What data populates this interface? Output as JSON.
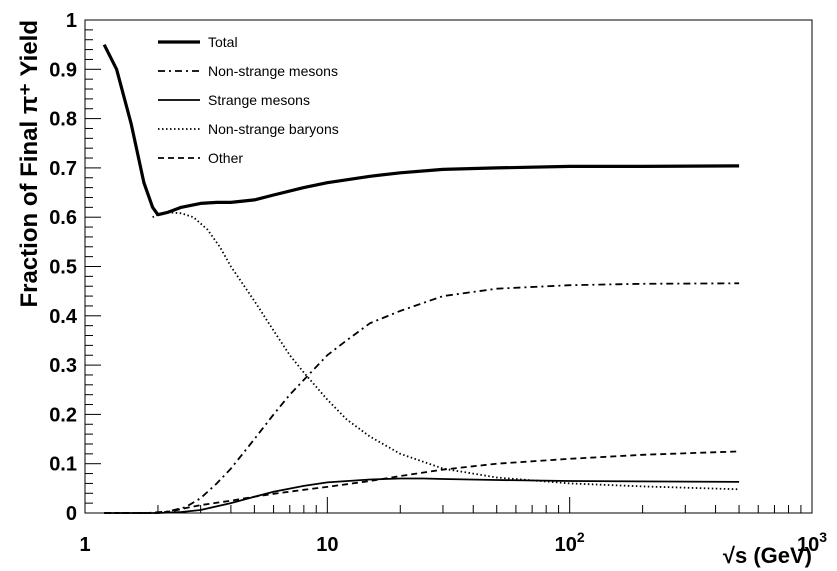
{
  "chart_data": {
    "type": "line",
    "title": "",
    "xlabel": "√s (GeV)",
    "ylabel": "Fraction of Final π⁺ Yield",
    "xscale": "log",
    "xlim": [
      1,
      1000
    ],
    "ylim": [
      0,
      1
    ],
    "xticks": [
      {
        "value": 1,
        "base": "1",
        "exp": ""
      },
      {
        "value": 10,
        "base": "10",
        "exp": ""
      },
      {
        "value": 100,
        "base": "10",
        "exp": "2"
      },
      {
        "value": 1000,
        "base": "10",
        "exp": "3"
      }
    ],
    "yticks": [
      "0",
      "0.1",
      "0.2",
      "0.3",
      "0.4",
      "0.5",
      "0.6",
      "0.7",
      "0.8",
      "0.9",
      "1"
    ],
    "grid": false,
    "legend_position": "top-left",
    "series": [
      {
        "name": "Total",
        "style": "thick-solid",
        "x": [
          1.2,
          1.35,
          1.55,
          1.75,
          1.9,
          2.0,
          2.2,
          2.5,
          3.0,
          3.5,
          4.0,
          5.0,
          6.0,
          8.0,
          10,
          15,
          20,
          30,
          50,
          100,
          200,
          500
        ],
        "y": [
          0.95,
          0.9,
          0.79,
          0.67,
          0.62,
          0.605,
          0.61,
          0.62,
          0.628,
          0.63,
          0.63,
          0.635,
          0.645,
          0.66,
          0.67,
          0.683,
          0.69,
          0.697,
          0.7,
          0.703,
          0.703,
          0.704
        ]
      },
      {
        "name": "Non-strange mesons",
        "style": "dashdot",
        "x": [
          1.2,
          1.8,
          2.2,
          2.6,
          3.0,
          3.5,
          4.0,
          5.0,
          6.0,
          7.0,
          8.0,
          10,
          12,
          15,
          20,
          30,
          50,
          100,
          200,
          500
        ],
        "y": [
          0,
          0,
          0.003,
          0.012,
          0.03,
          0.06,
          0.09,
          0.15,
          0.2,
          0.24,
          0.27,
          0.32,
          0.35,
          0.385,
          0.41,
          0.44,
          0.455,
          0.462,
          0.465,
          0.466
        ]
      },
      {
        "name": "Strange mesons",
        "style": "solid",
        "x": [
          1.2,
          2.0,
          2.5,
          3.0,
          4.0,
          5.0,
          6.0,
          8.0,
          10,
          15,
          20,
          25,
          30,
          50,
          100,
          500
        ],
        "y": [
          0,
          0,
          0.002,
          0.006,
          0.02,
          0.033,
          0.043,
          0.055,
          0.062,
          0.068,
          0.07,
          0.07,
          0.069,
          0.067,
          0.065,
          0.063
        ]
      },
      {
        "name": "Non-strange baryons",
        "style": "dotted",
        "x": [
          1.9,
          2.0,
          2.2,
          2.5,
          2.8,
          3.2,
          3.6,
          4.0,
          5.0,
          6.0,
          7.0,
          8.0,
          10,
          12,
          15,
          20,
          30,
          50,
          100,
          200,
          500
        ],
        "y": [
          0.6,
          0.605,
          0.61,
          0.608,
          0.6,
          0.575,
          0.54,
          0.5,
          0.43,
          0.37,
          0.32,
          0.285,
          0.23,
          0.19,
          0.155,
          0.12,
          0.09,
          0.072,
          0.06,
          0.054,
          0.048
        ]
      },
      {
        "name": "Other",
        "style": "dashed",
        "x": [
          1.2,
          2.0,
          2.3,
          2.6,
          3.0,
          4.0,
          5.0,
          6.0,
          8.0,
          10,
          15,
          20,
          30,
          50,
          100,
          200,
          500
        ],
        "y": [
          0,
          0,
          0.004,
          0.01,
          0.016,
          0.025,
          0.033,
          0.039,
          0.047,
          0.053,
          0.065,
          0.075,
          0.088,
          0.1,
          0.11,
          0.118,
          0.125
        ]
      }
    ]
  }
}
